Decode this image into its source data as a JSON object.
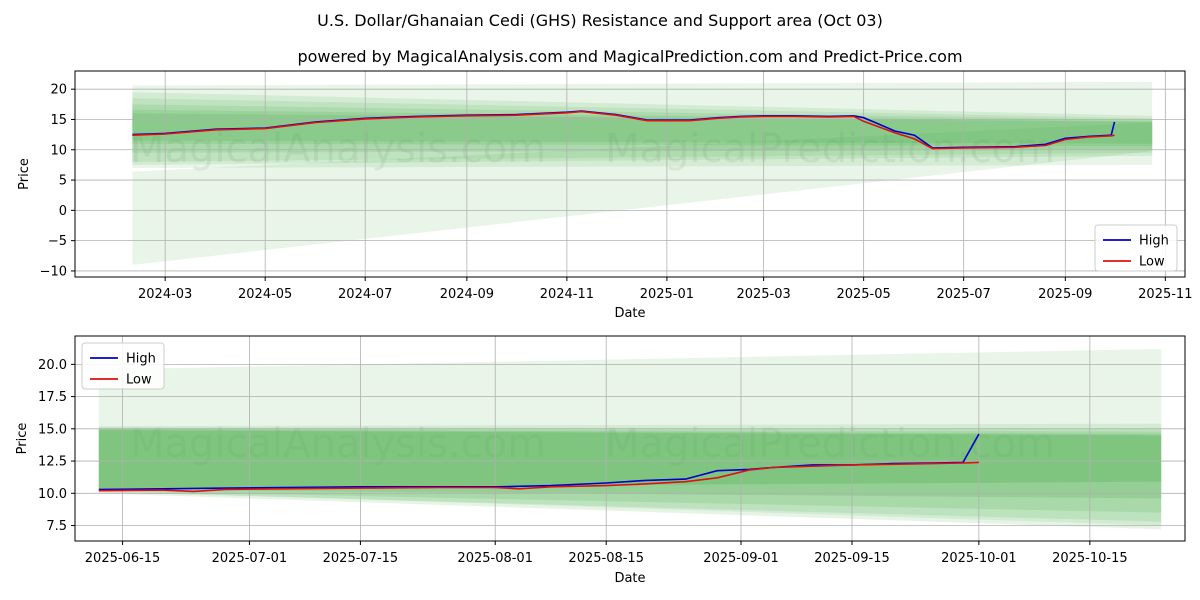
{
  "figure": {
    "title": "U.S. Dollar/Ghanaian Cedi (GHS) Resistance and Support area (Oct 03)",
    "subtitle": "powered by MagicalAnalysis.com and MagicalPrediction.com and Predict-Price.com",
    "watermarks": [
      "MagicalAnalysis.com",
      "MagicalPrediction.com"
    ]
  },
  "colors": {
    "high": "#0000cc",
    "low": "#dd1111",
    "band": "#4caf50",
    "grid": "#b0b0b0"
  },
  "chart_data": [
    {
      "type": "line",
      "xlabel": "Date",
      "ylabel": "Price",
      "xlim": [
        "2024-01-06",
        "2025-11-13"
      ],
      "ylim": [
        -11,
        23
      ],
      "xticks": [
        {
          "date": "2024-03-01",
          "label": "2024-03"
        },
        {
          "date": "2024-05-01",
          "label": "2024-05"
        },
        {
          "date": "2024-07-01",
          "label": "2024-07"
        },
        {
          "date": "2024-09-01",
          "label": "2024-09"
        },
        {
          "date": "2024-11-01",
          "label": "2024-11"
        },
        {
          "date": "2025-01-01",
          "label": "2025-01"
        },
        {
          "date": "2025-03-01",
          "label": "2025-03"
        },
        {
          "date": "2025-05-01",
          "label": "2025-05"
        },
        {
          "date": "2025-07-01",
          "label": "2025-07"
        },
        {
          "date": "2025-09-01",
          "label": "2025-09"
        },
        {
          "date": "2025-11-01",
          "label": "2025-11"
        }
      ],
      "yticks": [
        -10,
        -5,
        0,
        5,
        10,
        15,
        20
      ],
      "legend": {
        "position": "bottom-right",
        "entries": [
          "High",
          "Low"
        ]
      },
      "bands": {
        "start": "2024-02-10",
        "end": "2025-10-24",
        "layers": [
          {
            "start": [
              20.6,
              7.0
            ],
            "end": [
              21.2,
              7.5
            ],
            "opacity": 0.13
          },
          {
            "start": [
              6.4,
              -9.0
            ],
            "end": [
              14.5,
              9.8
            ],
            "opacity": 0.13
          },
          {
            "start": [
              19.5,
              7.5
            ],
            "end": [
              15.6,
              9.0
            ],
            "opacity": 0.14
          },
          {
            "start": [
              18.5,
              8.0
            ],
            "end": [
              15.2,
              9.5
            ],
            "opacity": 0.14
          },
          {
            "start": [
              17.5,
              9.5
            ],
            "end": [
              14.9,
              10.0
            ],
            "opacity": 0.16
          },
          {
            "start": [
              16.6,
              11.0
            ],
            "end": [
              14.7,
              10.6
            ],
            "opacity": 0.18
          },
          {
            "start": [
              16.0,
              11.5
            ],
            "end": [
              14.6,
              11.0
            ],
            "opacity": 0.22
          }
        ]
      },
      "series": [
        {
          "name": "High",
          "x": [
            "2024-02-10",
            "2024-03-01",
            "2024-04-01",
            "2024-05-01",
            "2024-06-01",
            "2024-07-01",
            "2024-08-01",
            "2024-09-01",
            "2024-10-01",
            "2024-11-01",
            "2024-11-10",
            "2024-12-01",
            "2024-12-20",
            "2025-01-15",
            "2025-02-01",
            "2025-02-15",
            "2025-03-01",
            "2025-03-20",
            "2025-04-10",
            "2025-04-25",
            "2025-05-01",
            "2025-05-08",
            "2025-05-20",
            "2025-06-01",
            "2025-06-12",
            "2025-07-01",
            "2025-08-01",
            "2025-08-20",
            "2025-09-01",
            "2025-09-15",
            "2025-09-29",
            "2025-10-01"
          ],
          "values": [
            12.5,
            12.7,
            13.4,
            13.6,
            14.6,
            15.2,
            15.5,
            15.7,
            15.8,
            16.2,
            16.4,
            15.8,
            14.9,
            14.9,
            15.3,
            15.5,
            15.6,
            15.6,
            15.5,
            15.6,
            15.3,
            14.5,
            13.1,
            12.4,
            10.3,
            10.4,
            10.5,
            10.9,
            11.9,
            12.2,
            12.4,
            14.6
          ]
        },
        {
          "name": "Low",
          "x": [
            "2024-02-10",
            "2024-03-01",
            "2024-04-01",
            "2024-05-01",
            "2024-06-01",
            "2024-07-01",
            "2024-08-01",
            "2024-09-01",
            "2024-10-01",
            "2024-11-01",
            "2024-11-10",
            "2024-12-01",
            "2024-12-20",
            "2025-01-15",
            "2025-02-01",
            "2025-02-15",
            "2025-03-01",
            "2025-03-20",
            "2025-04-10",
            "2025-04-25",
            "2025-05-01",
            "2025-05-08",
            "2025-05-20",
            "2025-06-01",
            "2025-06-12",
            "2025-07-01",
            "2025-08-01",
            "2025-08-20",
            "2025-09-01",
            "2025-09-15",
            "2025-09-29",
            "2025-10-01"
          ],
          "values": [
            12.4,
            12.6,
            13.3,
            13.5,
            14.5,
            15.1,
            15.4,
            15.6,
            15.7,
            16.1,
            16.3,
            15.7,
            14.8,
            14.8,
            15.2,
            15.4,
            15.5,
            15.5,
            15.4,
            15.5,
            14.7,
            14.0,
            12.8,
            11.8,
            10.2,
            10.3,
            10.4,
            10.7,
            11.7,
            12.1,
            12.3,
            12.4
          ]
        }
      ]
    },
    {
      "type": "line",
      "xlabel": "Date",
      "ylabel": "Price",
      "xlim": [
        "2025-06-09",
        "2025-10-27"
      ],
      "ylim": [
        6.3,
        22.2
      ],
      "xticks": [
        {
          "date": "2025-06-15",
          "label": "2025-06-15"
        },
        {
          "date": "2025-07-01",
          "label": "2025-07-01"
        },
        {
          "date": "2025-07-15",
          "label": "2025-07-15"
        },
        {
          "date": "2025-08-01",
          "label": "2025-08-01"
        },
        {
          "date": "2025-08-15",
          "label": "2025-08-15"
        },
        {
          "date": "2025-09-01",
          "label": "2025-09-01"
        },
        {
          "date": "2025-09-15",
          "label": "2025-09-15"
        },
        {
          "date": "2025-10-01",
          "label": "2025-10-01"
        },
        {
          "date": "2025-10-15",
          "label": "2025-10-15"
        }
      ],
      "yticks": [
        7.5,
        10.0,
        12.5,
        15.0,
        17.5,
        20.0
      ],
      "legend": {
        "position": "top-left",
        "entries": [
          "High",
          "Low"
        ]
      },
      "bands": {
        "start": "2025-06-12",
        "end": "2025-10-24",
        "layers": [
          {
            "start": [
              19.6,
              10.2
            ],
            "end": [
              21.2,
              7.5
            ],
            "opacity": 0.13
          },
          {
            "start": [
              15.2,
              10.0
            ],
            "end": [
              15.4,
              7.2
            ],
            "opacity": 0.14
          },
          {
            "start": [
              15.1,
              10.1
            ],
            "end": [
              15.0,
              7.8
            ],
            "opacity": 0.15
          },
          {
            "start": [
              15.0,
              10.2
            ],
            "end": [
              14.8,
              8.5
            ],
            "opacity": 0.18
          },
          {
            "start": [
              15.0,
              10.3
            ],
            "end": [
              14.6,
              9.6
            ],
            "opacity": 0.22
          },
          {
            "start": [
              14.9,
              10.4
            ],
            "end": [
              14.5,
              10.9
            ],
            "opacity": 0.3
          }
        ]
      },
      "series": [
        {
          "name": "High",
          "x": [
            "2025-06-12",
            "2025-06-20",
            "2025-06-28",
            "2025-07-05",
            "2025-07-15",
            "2025-07-25",
            "2025-08-01",
            "2025-08-08",
            "2025-08-15",
            "2025-08-20",
            "2025-08-25",
            "2025-08-29",
            "2025-09-02",
            "2025-09-05",
            "2025-09-10",
            "2025-09-15",
            "2025-09-20",
            "2025-09-25",
            "2025-09-29",
            "2025-10-01"
          ],
          "values": [
            10.3,
            10.35,
            10.4,
            10.45,
            10.5,
            10.5,
            10.5,
            10.6,
            10.8,
            11.0,
            11.1,
            11.75,
            11.85,
            12.0,
            12.2,
            12.2,
            12.3,
            12.35,
            12.4,
            14.6
          ]
        },
        {
          "name": "Low",
          "x": [
            "2025-06-12",
            "2025-06-20",
            "2025-06-24",
            "2025-06-28",
            "2025-07-05",
            "2025-07-15",
            "2025-07-25",
            "2025-08-01",
            "2025-08-04",
            "2025-08-08",
            "2025-08-15",
            "2025-08-19",
            "2025-08-25",
            "2025-08-29",
            "2025-09-02",
            "2025-09-05",
            "2025-09-10",
            "2025-09-15",
            "2025-09-20",
            "2025-09-25",
            "2025-09-29",
            "2025-10-01"
          ],
          "values": [
            10.2,
            10.25,
            10.15,
            10.3,
            10.35,
            10.4,
            10.45,
            10.45,
            10.35,
            10.5,
            10.6,
            10.7,
            10.9,
            11.2,
            11.8,
            12.0,
            12.1,
            12.2,
            12.25,
            12.3,
            12.35,
            12.4
          ]
        }
      ]
    }
  ]
}
